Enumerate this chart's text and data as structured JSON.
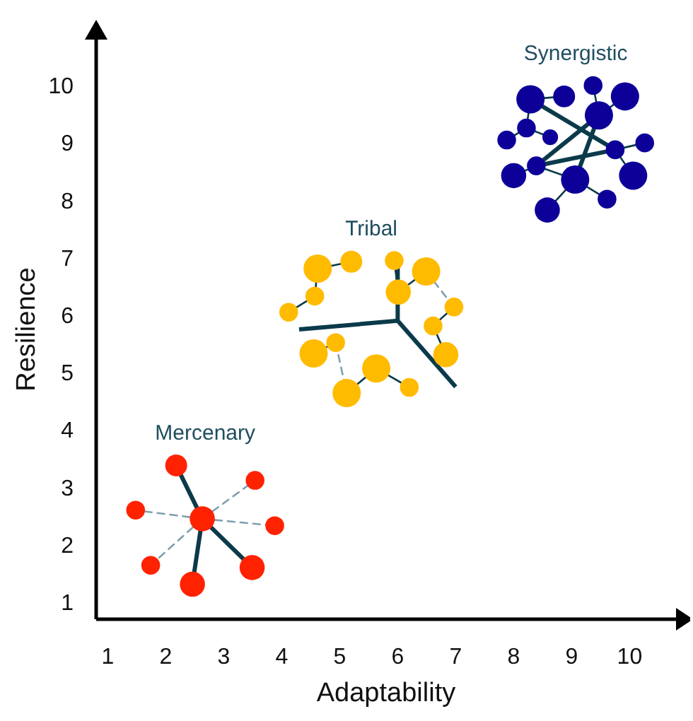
{
  "chart_data": {
    "type": "bubble",
    "xlabel": "Adaptability",
    "ylabel": "Resilience",
    "xlim": [
      0.8,
      10.8
    ],
    "ylim": [
      0.7,
      10.8
    ],
    "xticks": [
      1,
      2,
      3,
      4,
      5,
      6,
      7,
      8,
      9,
      10
    ],
    "yticks": [
      1,
      2,
      3,
      4,
      5,
      6,
      7,
      8,
      9,
      10
    ],
    "marker": "circle",
    "series": [
      {
        "name": "Mercenary",
        "color": "#ff2200",
        "x": [
          2.63,
          2.18,
          3.54,
          1.48,
          3.88,
          1.74,
          2.46,
          3.49
        ],
        "values": [
          2.45,
          3.38,
          3.12,
          2.6,
          2.33,
          1.64,
          1.31,
          1.6
        ],
        "sizes": [
          0.79,
          0.6,
          0.44,
          0.44,
          0.44,
          0.44,
          0.79,
          0.79
        ]
      },
      {
        "name": "Tribal",
        "color": "#ffbb00",
        "x": [
          4.62,
          5.2,
          4.57,
          4.12,
          5.94,
          6.49,
          6.01,
          6.97,
          6.61,
          6.83,
          4.55,
          4.93,
          5.63,
          5.12,
          6.2
        ],
        "values": [
          6.81,
          6.93,
          6.33,
          6.05,
          6.95,
          6.76,
          6.4,
          6.14,
          5.81,
          5.31,
          5.33,
          5.52,
          5.07,
          4.64,
          4.74
        ],
        "sizes": [
          1,
          0.6,
          0.44,
          0.44,
          0.44,
          1,
          0.79,
          0.44,
          0.44,
          0.79,
          1,
          0.44,
          1,
          1,
          0.44
        ]
      },
      {
        "name": "Synergistic",
        "color": "#0d0099",
        "x": [
          8.29,
          8.87,
          9.37,
          9.92,
          9.47,
          8.22,
          8.63,
          7.88,
          9.75,
          10.26,
          8.39,
          8.0,
          9.06,
          10.06,
          9.61,
          8.58
        ],
        "values": [
          9.76,
          9.81,
          10.0,
          9.81,
          9.48,
          9.26,
          9.1,
          9.05,
          8.88,
          9.0,
          8.6,
          8.43,
          8.36,
          8.43,
          8.02,
          7.83
        ],
        "sizes": [
          1,
          0.6,
          0.44,
          1,
          1,
          0.44,
          0.31,
          0.44,
          0.44,
          0.44,
          0.44,
          0.79,
          1,
          1,
          0.44,
          0.79
        ]
      }
    ]
  }
}
